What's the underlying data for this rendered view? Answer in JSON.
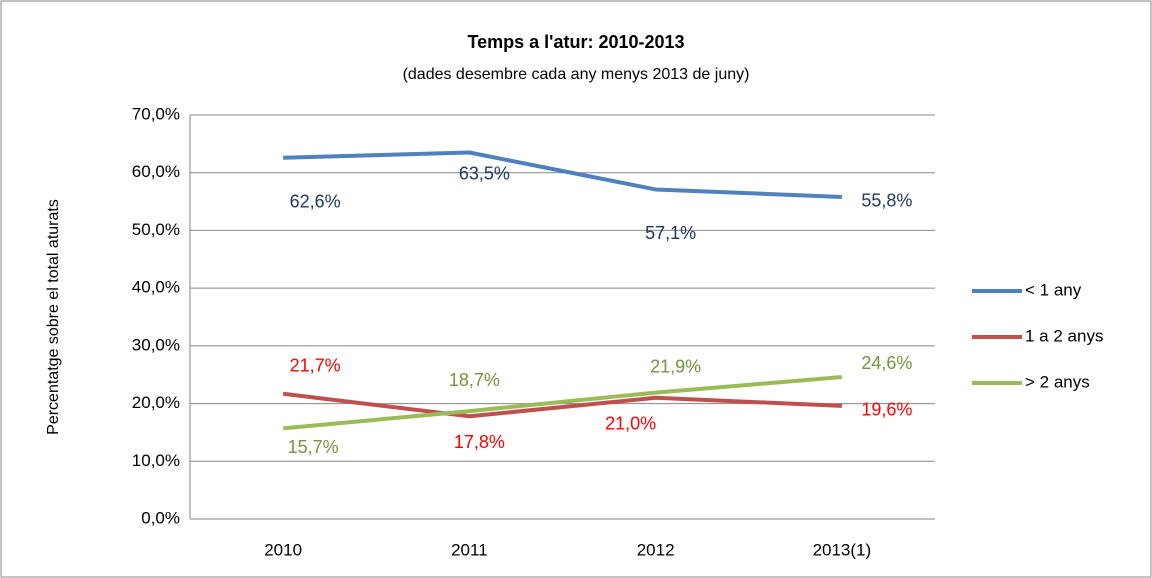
{
  "chart_data": {
    "type": "line",
    "title": "Temps a l'atur: 2010-2013",
    "subtitle": "(dades desembre cada any menys 2013 de juny)",
    "y_label": "Percentatge sobre el total aturats",
    "categories": [
      "2010",
      "2011",
      "2012",
      "2013(1)"
    ],
    "series": [
      {
        "name": "< 1 any",
        "color": "#4f81bd",
        "label_color": "#1f3864",
        "values": [
          62.6,
          63.5,
          57.1,
          55.8
        ],
        "value_labels": [
          "62,6%",
          "63,5%",
          "57,1%",
          "55,8%"
        ]
      },
      {
        "name": "1 a 2 anys",
        "color": "#c0504d",
        "label_color": "#ff0000",
        "values": [
          21.7,
          17.8,
          21.0,
          19.6
        ],
        "value_labels": [
          "21,7%",
          "17,8%",
          "21,0%",
          "19,6%"
        ]
      },
      {
        "name": "> 2 anys",
        "color": "#9bbb59",
        "label_color": "#77933c",
        "values": [
          15.7,
          18.7,
          21.9,
          24.6
        ],
        "value_labels": [
          "15,7%",
          "18,7%",
          "21,9%",
          "24,6%"
        ]
      }
    ],
    "ylim": [
      0,
      70
    ],
    "yticks": [
      {
        "value": 0,
        "label": "0,0%"
      },
      {
        "value": 10,
        "label": "10,0%"
      },
      {
        "value": 20,
        "label": "20,0%"
      },
      {
        "value": 30,
        "label": "30,0%"
      },
      {
        "value": 40,
        "label": "40,0%"
      },
      {
        "value": 50,
        "label": "50,0%"
      },
      {
        "value": 60,
        "label": "60,0%"
      },
      {
        "value": 70,
        "label": "70,0%"
      }
    ],
    "grid": true,
    "legend": "right"
  }
}
